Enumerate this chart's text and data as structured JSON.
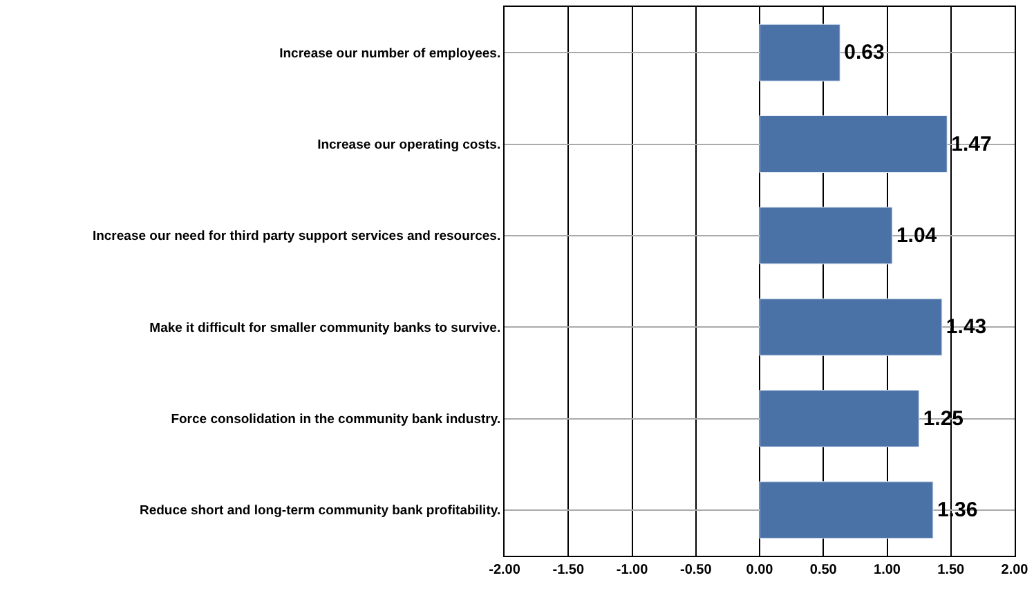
{
  "chart_data": {
    "type": "bar",
    "orientation": "horizontal",
    "categories": [
      "Increase our number of employees.",
      "Increase our operating costs.",
      "Increase our need for third party support services and resources.",
      "Make it difficult for smaller community banks to survive.",
      "Force consolidation in the community bank industry.",
      "Reduce short and long-term community bank profitability."
    ],
    "values": [
      0.63,
      1.47,
      1.04,
      1.43,
      1.25,
      1.36
    ],
    "color": "#4a72a6",
    "xlim": [
      -2,
      2
    ],
    "xticks": [
      {
        "value": -2,
        "label": "-2.00"
      },
      {
        "value": -1.5,
        "label": "-1.50"
      },
      {
        "value": -1,
        "label": "-1.00"
      },
      {
        "value": -0.5,
        "label": "-0.50"
      },
      {
        "value": 0,
        "label": "0.00"
      },
      {
        "value": 0.5,
        "label": "0.50"
      },
      {
        "value": 1,
        "label": "1.00"
      },
      {
        "value": 1.5,
        "label": "1.50"
      },
      {
        "value": 2,
        "label": "2.00"
      }
    ],
    "grid": true,
    "data_labels": true
  }
}
